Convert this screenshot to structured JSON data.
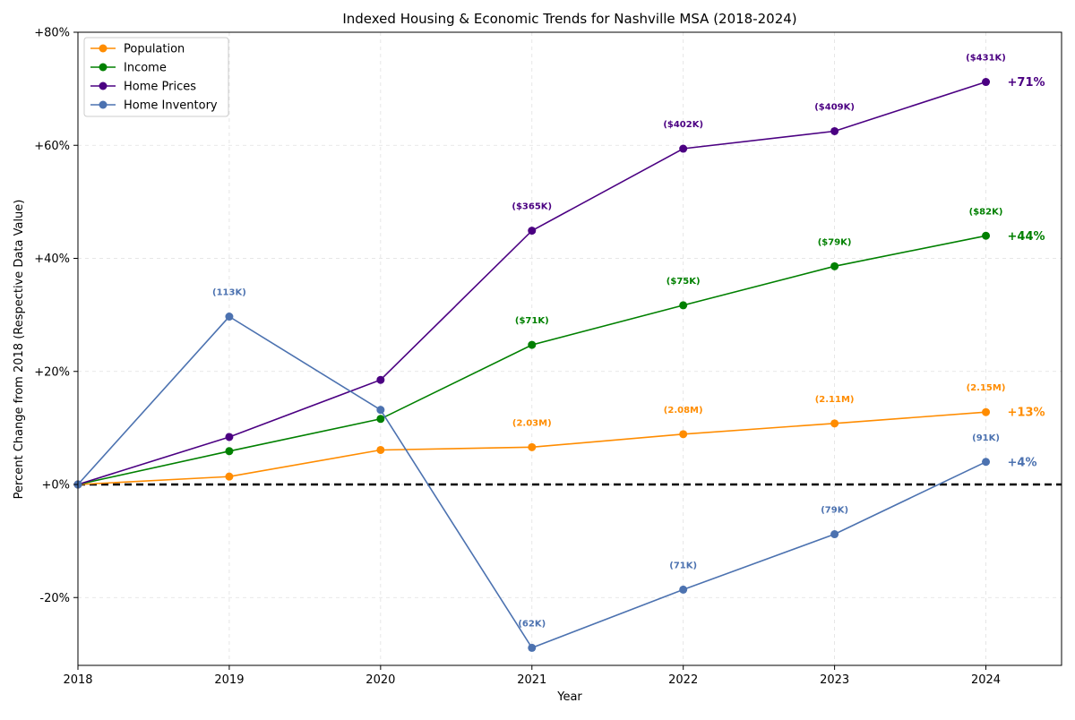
{
  "chart_data": {
    "type": "line",
    "title": "Indexed Housing & Economic Trends for Nashville MSA (2018-2024)",
    "xlabel": "Year",
    "ylabel": "Percent Change from 2018 (Respective Data Value)",
    "x": [
      2018,
      2019,
      2020,
      2021,
      2022,
      2023,
      2024
    ],
    "x_tick_labels": [
      "2018",
      "2019",
      "2020",
      "2021",
      "2022",
      "2023",
      "2024"
    ],
    "xlim": [
      2018,
      2024.5
    ],
    "ylim": [
      -32,
      80
    ],
    "y_ticks": [
      -20,
      0,
      20,
      40,
      60,
      80
    ],
    "y_tick_labels": [
      "-20%",
      "+0%",
      "+20%",
      "+40%",
      "+60%",
      "+80%"
    ],
    "grid": true,
    "legend_position": "upper-left",
    "baseline": 0,
    "series": [
      {
        "name": "Population",
        "color": "#ff8c00",
        "values": [
          0,
          1.4,
          6.1,
          6.6,
          8.9,
          10.8,
          12.8
        ],
        "labels": [
          "",
          "",
          "",
          "(2.03M)",
          "(2.08M)",
          "(2.11M)",
          "(2.15M)"
        ],
        "end_label": "+13%"
      },
      {
        "name": "Income",
        "color": "#008000",
        "values": [
          0,
          5.9,
          11.6,
          24.7,
          31.7,
          38.6,
          44.0
        ],
        "labels": [
          "",
          "",
          "",
          "($71K)",
          "($75K)",
          "($79K)",
          "($82K)"
        ],
        "end_label": "+44%"
      },
      {
        "name": "Home Prices",
        "color": "#4b0082",
        "values": [
          0,
          8.4,
          18.5,
          44.9,
          59.4,
          62.5,
          71.2
        ],
        "labels": [
          "",
          "",
          "",
          "($365K)",
          "($402K)",
          "($409K)",
          "($431K)"
        ],
        "end_label": "+71%"
      },
      {
        "name": "Home Inventory",
        "color": "#4c72b0",
        "values": [
          0,
          29.7,
          13.2,
          -28.9,
          -18.6,
          -8.8,
          4.0
        ],
        "labels": [
          "",
          "(113K)",
          "",
          "(62K)",
          "(71K)",
          "(79K)",
          "(91K)"
        ],
        "end_label": "+4%"
      }
    ]
  }
}
